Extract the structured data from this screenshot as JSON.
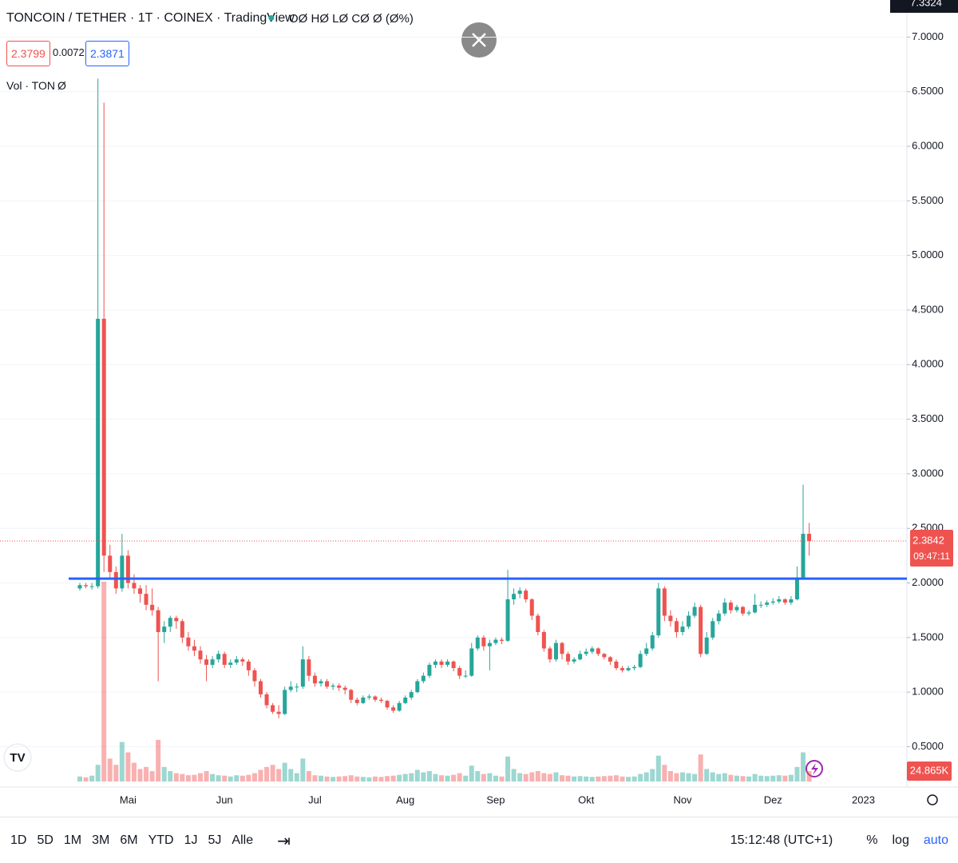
{
  "header": {
    "symbol": "TONCOIN / TETHER · 1T · COINEX · TradingView",
    "ohlc": "OØ HØ LØ CØ Ø (Ø%)",
    "bid": "2.3799",
    "spread": "0.0072",
    "ask": "2.3871",
    "volume_legend": "Vol · TON",
    "volume_value": "Ø",
    "crosshair_price": "7.3324"
  },
  "chart_data": {
    "type": "candlestick",
    "categories": [
      null,
      null,
      null,
      null,
      null,
      null,
      null,
      null,
      "Mai",
      null,
      null,
      null,
      null,
      null,
      null,
      null,
      null,
      null,
      null,
      null,
      null,
      null,
      null,
      null,
      "Jun",
      null,
      null,
      null,
      null,
      null,
      null,
      null,
      null,
      null,
      null,
      null,
      null,
      null,
      null,
      "Jul",
      null,
      null,
      null,
      null,
      null,
      null,
      null,
      null,
      null,
      null,
      null,
      null,
      null,
      null,
      "Aug",
      null,
      null,
      null,
      null,
      null,
      null,
      null,
      null,
      null,
      null,
      null,
      null,
      null,
      null,
      "Sep",
      null,
      null,
      null,
      null,
      null,
      null,
      null,
      null,
      null,
      null,
      null,
      null,
      null,
      null,
      "Okt",
      null,
      null,
      null,
      null,
      null,
      null,
      null,
      null,
      null,
      null,
      null,
      null,
      null,
      null,
      null,
      "Nov",
      null,
      null,
      null,
      null,
      null,
      null,
      null,
      null,
      null,
      null,
      null,
      null,
      null,
      null,
      "Dez",
      null,
      null,
      null,
      null,
      null,
      null,
      null,
      null,
      null,
      null,
      null,
      null,
      null,
      null,
      "2023"
    ],
    "candles": [
      [
        1.95,
        2.0,
        1.93,
        1.98
      ],
      [
        1.98,
        2.0,
        1.95,
        1.97
      ],
      [
        1.97,
        2.0,
        1.94,
        1.97
      ],
      [
        1.97,
        6.62,
        1.95,
        4.42
      ],
      [
        4.42,
        6.4,
        2.1,
        2.25
      ],
      [
        2.25,
        2.35,
        2.05,
        2.1
      ],
      [
        2.1,
        2.15,
        1.9,
        1.95
      ],
      [
        1.95,
        2.45,
        1.92,
        2.25
      ],
      [
        2.25,
        2.3,
        1.95,
        2.0
      ],
      [
        2.0,
        2.08,
        1.9,
        1.95
      ],
      [
        1.95,
        1.98,
        1.82,
        1.9
      ],
      [
        1.9,
        1.98,
        1.75,
        1.8
      ],
      [
        1.8,
        1.95,
        1.7,
        1.75
      ],
      [
        1.75,
        1.78,
        1.1,
        1.55
      ],
      [
        1.55,
        1.65,
        1.45,
        1.6
      ],
      [
        1.6,
        1.7,
        1.55,
        1.68
      ],
      [
        1.68,
        1.7,
        1.58,
        1.65
      ],
      [
        1.65,
        1.67,
        1.45,
        1.5
      ],
      [
        1.5,
        1.55,
        1.38,
        1.42
      ],
      [
        1.42,
        1.48,
        1.33,
        1.38
      ],
      [
        1.38,
        1.42,
        1.26,
        1.3
      ],
      [
        1.3,
        1.34,
        1.1,
        1.25
      ],
      [
        1.25,
        1.33,
        1.22,
        1.3
      ],
      [
        1.3,
        1.38,
        1.27,
        1.35
      ],
      [
        1.35,
        1.37,
        1.22,
        1.25
      ],
      [
        1.25,
        1.3,
        1.22,
        1.27
      ],
      [
        1.27,
        1.33,
        1.25,
        1.3
      ],
      [
        1.3,
        1.32,
        1.24,
        1.28
      ],
      [
        1.28,
        1.3,
        1.15,
        1.2
      ],
      [
        1.2,
        1.22,
        1.05,
        1.1
      ],
      [
        1.1,
        1.12,
        0.95,
        0.98
      ],
      [
        0.98,
        1.0,
        0.85,
        0.88
      ],
      [
        0.88,
        0.9,
        0.8,
        0.82
      ],
      [
        0.82,
        0.88,
        0.76,
        0.8
      ],
      [
        0.8,
        1.05,
        0.79,
        1.02
      ],
      [
        1.02,
        1.1,
        1.0,
        1.05
      ],
      [
        1.05,
        1.08,
        1.0,
        1.05
      ],
      [
        1.05,
        1.42,
        1.03,
        1.3
      ],
      [
        1.3,
        1.33,
        1.1,
        1.15
      ],
      [
        1.15,
        1.18,
        1.05,
        1.08
      ],
      [
        1.08,
        1.12,
        1.05,
        1.1
      ],
      [
        1.1,
        1.12,
        1.03,
        1.05
      ],
      [
        1.05,
        1.08,
        1.02,
        1.06
      ],
      [
        1.06,
        1.08,
        1.01,
        1.04
      ],
      [
        1.04,
        1.06,
        0.98,
        1.02
      ],
      [
        1.02,
        1.03,
        0.9,
        0.93
      ],
      [
        0.93,
        0.95,
        0.88,
        0.9
      ],
      [
        0.9,
        0.97,
        0.89,
        0.95
      ],
      [
        0.95,
        0.98,
        0.93,
        0.96
      ],
      [
        0.96,
        0.97,
        0.91,
        0.93
      ],
      [
        0.93,
        0.95,
        0.9,
        0.92
      ],
      [
        0.92,
        0.93,
        0.84,
        0.86
      ],
      [
        0.86,
        0.88,
        0.81,
        0.83
      ],
      [
        0.83,
        0.92,
        0.82,
        0.9
      ],
      [
        0.9,
        0.97,
        0.89,
        0.95
      ],
      [
        0.95,
        1.02,
        0.93,
        1.0
      ],
      [
        1.0,
        1.12,
        0.99,
        1.1
      ],
      [
        1.1,
        1.18,
        1.08,
        1.15
      ],
      [
        1.15,
        1.27,
        1.13,
        1.25
      ],
      [
        1.25,
        1.3,
        1.22,
        1.28
      ],
      [
        1.28,
        1.3,
        1.22,
        1.25
      ],
      [
        1.25,
        1.3,
        1.23,
        1.28
      ],
      [
        1.28,
        1.29,
        1.19,
        1.22
      ],
      [
        1.22,
        1.24,
        1.12,
        1.15
      ],
      [
        1.15,
        1.2,
        1.13,
        1.15
      ],
      [
        1.15,
        1.45,
        1.14,
        1.4
      ],
      [
        1.4,
        1.52,
        1.38,
        1.5
      ],
      [
        1.5,
        1.52,
        1.38,
        1.42
      ],
      [
        1.42,
        1.48,
        1.2,
        1.45
      ],
      [
        1.45,
        1.5,
        1.43,
        1.48
      ],
      [
        1.48,
        1.5,
        1.44,
        1.47
      ],
      [
        1.47,
        2.12,
        1.46,
        1.85
      ],
      [
        1.85,
        1.95,
        1.8,
        1.9
      ],
      [
        1.9,
        1.96,
        1.86,
        1.93
      ],
      [
        1.93,
        1.95,
        1.82,
        1.85
      ],
      [
        1.85,
        1.86,
        1.66,
        1.7
      ],
      [
        1.7,
        1.72,
        1.52,
        1.55
      ],
      [
        1.55,
        1.57,
        1.37,
        1.4
      ],
      [
        1.4,
        1.42,
        1.27,
        1.3
      ],
      [
        1.3,
        1.48,
        1.28,
        1.45
      ],
      [
        1.45,
        1.46,
        1.3,
        1.35
      ],
      [
        1.35,
        1.37,
        1.25,
        1.28
      ],
      [
        1.28,
        1.32,
        1.26,
        1.3
      ],
      [
        1.3,
        1.38,
        1.29,
        1.35
      ],
      [
        1.35,
        1.4,
        1.33,
        1.37
      ],
      [
        1.37,
        1.42,
        1.35,
        1.4
      ],
      [
        1.4,
        1.41,
        1.33,
        1.35
      ],
      [
        1.35,
        1.36,
        1.3,
        1.32
      ],
      [
        1.32,
        1.33,
        1.25,
        1.28
      ],
      [
        1.28,
        1.3,
        1.2,
        1.22
      ],
      [
        1.22,
        1.24,
        1.18,
        1.2
      ],
      [
        1.2,
        1.24,
        1.19,
        1.22
      ],
      [
        1.22,
        1.25,
        1.2,
        1.23
      ],
      [
        1.23,
        1.38,
        1.22,
        1.35
      ],
      [
        1.35,
        1.45,
        1.33,
        1.4
      ],
      [
        1.4,
        1.55,
        1.38,
        1.52
      ],
      [
        1.52,
        2.0,
        1.5,
        1.95
      ],
      [
        1.95,
        1.97,
        1.65,
        1.7
      ],
      [
        1.7,
        1.75,
        1.6,
        1.65
      ],
      [
        1.65,
        1.68,
        1.5,
        1.55
      ],
      [
        1.55,
        1.65,
        1.52,
        1.6
      ],
      [
        1.6,
        1.74,
        1.58,
        1.7
      ],
      [
        1.7,
        1.82,
        1.68,
        1.78
      ],
      [
        1.78,
        1.8,
        1.32,
        1.35
      ],
      [
        1.35,
        1.55,
        1.34,
        1.5
      ],
      [
        1.5,
        1.68,
        1.48,
        1.65
      ],
      [
        1.65,
        1.75,
        1.62,
        1.72
      ],
      [
        1.72,
        1.86,
        1.7,
        1.82
      ],
      [
        1.82,
        1.84,
        1.72,
        1.75
      ],
      [
        1.75,
        1.8,
        1.73,
        1.78
      ],
      [
        1.78,
        1.79,
        1.7,
        1.72
      ],
      [
        1.72,
        1.75,
        1.7,
        1.73
      ],
      [
        1.73,
        1.9,
        1.72,
        1.8
      ],
      [
        1.8,
        1.83,
        1.77,
        1.8
      ],
      [
        1.8,
        1.84,
        1.78,
        1.82
      ],
      [
        1.82,
        1.86,
        1.8,
        1.83
      ],
      [
        1.83,
        1.88,
        1.81,
        1.85
      ],
      [
        1.85,
        1.86,
        1.8,
        1.82
      ],
      [
        1.82,
        1.88,
        1.8,
        1.85
      ],
      [
        1.85,
        2.15,
        1.84,
        2.05
      ],
      [
        2.05,
        2.9,
        2.03,
        2.45
      ],
      [
        2.45,
        2.55,
        2.25,
        2.3842
      ],
      null,
      null,
      null,
      null,
      null,
      null,
      null,
      null,
      null
    ],
    "volume": [
      12,
      10,
      14,
      40,
      480,
      55,
      40,
      95,
      70,
      45,
      30,
      35,
      25,
      100,
      35,
      25,
      20,
      18,
      15,
      16,
      20,
      25,
      18,
      15,
      14,
      12,
      15,
      14,
      16,
      20,
      28,
      35,
      40,
      30,
      45,
      30,
      20,
      55,
      25,
      15,
      14,
      12,
      11,
      12,
      13,
      15,
      12,
      11,
      10,
      12,
      11,
      13,
      14,
      16,
      18,
      20,
      28,
      22,
      25,
      18,
      15,
      14,
      16,
      20,
      14,
      38,
      25,
      18,
      20,
      14,
      12,
      60,
      30,
      20,
      18,
      22,
      25,
      20,
      18,
      22,
      15,
      14,
      12,
      13,
      12,
      11,
      12,
      13,
      14,
      15,
      12,
      11,
      12,
      18,
      22,
      30,
      62,
      40,
      25,
      20,
      22,
      20,
      18,
      65,
      30,
      22,
      18,
      20,
      16,
      14,
      13,
      12,
      18,
      14,
      13,
      14,
      15,
      14,
      16,
      35,
      70,
      24.865,
      null,
      null,
      null,
      null,
      null,
      null,
      null,
      null,
      null
    ],
    "up_color": "#26a69a",
    "down_color": "#ef5350",
    "ylim": [
      0.13,
      7.34
    ],
    "yticks": [
      {
        "value": 0.5,
        "label": "0.5000"
      },
      {
        "value": 1,
        "label": "1.0000"
      },
      {
        "value": 1.5,
        "label": "1.5000"
      },
      {
        "value": 2,
        "label": "2.0000"
      },
      {
        "value": 2.5,
        "label": "2.5000"
      },
      {
        "value": 3,
        "label": "3.0000"
      },
      {
        "value": 3.5,
        "label": "3.5000"
      },
      {
        "value": 4,
        "label": "4.0000"
      },
      {
        "value": 4.5,
        "label": "4.5000"
      },
      {
        "value": 5,
        "label": "5.0000"
      },
      {
        "value": 5.5,
        "label": "5.5000"
      },
      {
        "value": 6,
        "label": "6.0000"
      },
      {
        "value": 6.5,
        "label": "6.5000"
      },
      {
        "value": 7,
        "label": "7.0000"
      }
    ],
    "grid": true,
    "hline": 2.04,
    "hline_color": "#2962ff",
    "last_price": 2.3842,
    "countdown": "09:47:11",
    "volume_label": "24.865K"
  },
  "toolbar": {
    "ranges": [
      "1D",
      "5D",
      "1M",
      "3M",
      "6M",
      "YTD",
      "1J",
      "5J",
      "Alle"
    ],
    "time": "15:12:48 (UTC+1)",
    "options": [
      "%",
      "log",
      "auto"
    ]
  }
}
